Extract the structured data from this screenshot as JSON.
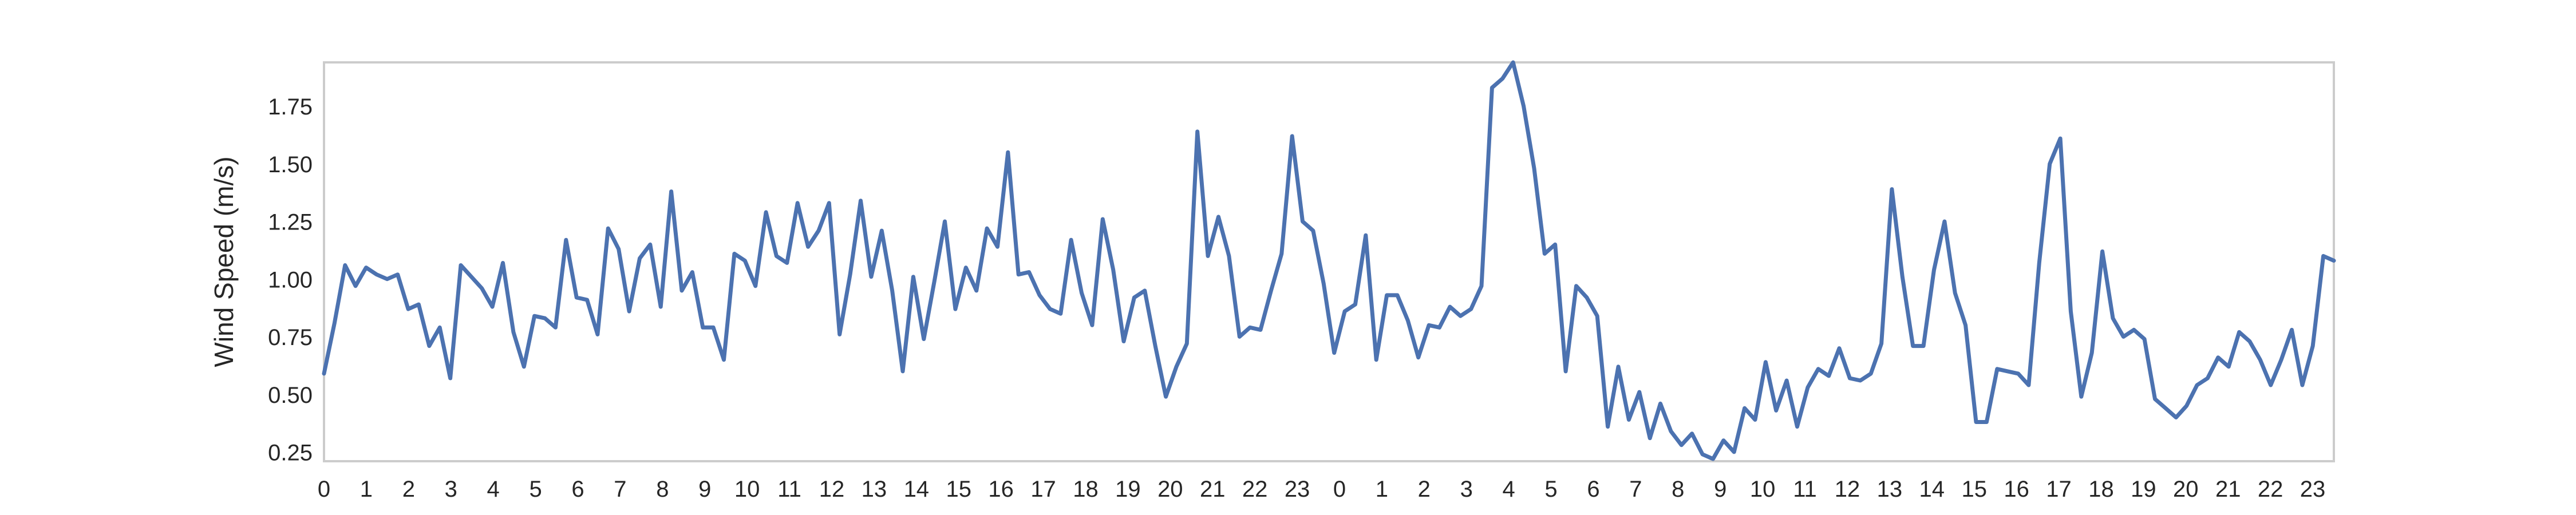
{
  "chart_data": {
    "type": "line",
    "title": "",
    "xlabel": "",
    "ylabel": "Wind Speed (m/s)",
    "ylim": [
      0.22,
      1.95
    ],
    "xlim": [
      0,
      47.5
    ],
    "grid": false,
    "colors": {
      "line": "#4c72b0",
      "frame": "#cccccc",
      "text": "#262626"
    },
    "y_ticks": [
      0.25,
      0.5,
      0.75,
      1.0,
      1.25,
      1.5,
      1.75
    ],
    "y_tick_labels": [
      "0.25",
      "0.50",
      "0.75",
      "1.00",
      "1.25",
      "1.50",
      "1.75"
    ],
    "x_ticks": [
      0,
      1,
      2,
      3,
      4,
      5,
      6,
      7,
      8,
      9,
      10,
      11,
      12,
      13,
      14,
      15,
      16,
      17,
      18,
      19,
      20,
      21,
      22,
      23,
      24,
      25,
      26,
      27,
      28,
      29,
      30,
      31,
      32,
      33,
      34,
      35,
      36,
      37,
      38,
      39,
      40,
      41,
      42,
      43,
      44,
      45,
      46,
      47
    ],
    "x_tick_labels": [
      "0",
      "1",
      "2",
      "3",
      "4",
      "5",
      "6",
      "7",
      "8",
      "9",
      "10",
      "11",
      "12",
      "13",
      "14",
      "15",
      "16",
      "17",
      "18",
      "19",
      "20",
      "21",
      "22",
      "23",
      "0",
      "1",
      "2",
      "3",
      "4",
      "5",
      "6",
      "7",
      "8",
      "9",
      "10",
      "11",
      "12",
      "13",
      "14",
      "15",
      "16",
      "17",
      "18",
      "19",
      "20",
      "21",
      "22",
      "23"
    ],
    "series": [
      {
        "values": [
          0.6,
          0.82,
          1.07,
          0.98,
          1.06,
          1.03,
          1.01,
          1.03,
          0.88,
          0.9,
          0.72,
          0.8,
          0.58,
          1.07,
          1.02,
          0.97,
          0.89,
          1.08,
          0.78,
          0.63,
          0.85,
          0.84,
          0.8,
          1.18,
          0.93,
          0.92,
          0.77,
          1.23,
          1.14,
          0.87,
          1.1,
          1.16,
          0.89,
          1.39,
          0.96,
          1.04,
          0.8,
          0.8,
          0.66,
          1.12,
          1.09,
          0.98,
          1.3,
          1.11,
          1.08,
          1.34,
          1.15,
          1.22,
          1.34,
          0.77,
          1.03,
          1.35,
          1.02,
          1.22,
          0.96,
          0.61,
          1.02,
          0.75,
          1.0,
          1.26,
          0.88,
          1.06,
          0.96,
          1.23,
          1.15,
          1.56,
          1.03,
          1.04,
          0.94,
          0.88,
          0.86,
          1.18,
          0.95,
          0.81,
          1.27,
          1.05,
          0.74,
          0.93,
          0.96,
          0.72,
          0.5,
          0.63,
          0.73,
          1.65,
          1.11,
          1.28,
          1.11,
          0.76,
          0.8,
          0.79,
          0.96,
          1.12,
          1.63,
          1.26,
          1.22,
          0.99,
          0.69,
          0.87,
          0.9,
          1.2,
          0.66,
          0.94,
          0.94,
          0.83,
          0.67,
          0.81,
          0.8,
          0.89,
          0.85,
          0.88,
          0.98,
          1.84,
          1.88,
          1.95,
          1.76,
          1.49,
          1.12,
          1.16,
          0.61,
          0.98,
          0.93,
          0.85,
          0.37,
          0.63,
          0.4,
          0.52,
          0.32,
          0.47,
          0.35,
          0.29,
          0.34,
          0.25,
          0.23,
          0.31,
          0.26,
          0.45,
          0.4,
          0.65,
          0.44,
          0.57,
          0.37,
          0.54,
          0.62,
          0.59,
          0.71,
          0.58,
          0.57,
          0.6,
          0.73,
          1.4,
          1.02,
          0.72,
          0.72,
          1.05,
          1.26,
          0.95,
          0.81,
          0.39,
          0.39,
          0.62,
          0.61,
          0.6,
          0.55,
          1.08,
          1.51,
          1.62,
          0.87,
          0.5,
          0.69,
          1.13,
          0.84,
          0.76,
          0.79,
          0.75,
          0.49,
          0.45,
          0.41,
          0.46,
          0.55,
          0.58,
          0.67,
          0.63,
          0.78,
          0.74,
          0.66,
          0.55,
          0.66,
          0.79,
          0.55,
          0.72,
          1.11,
          1.09
        ]
      }
    ]
  }
}
